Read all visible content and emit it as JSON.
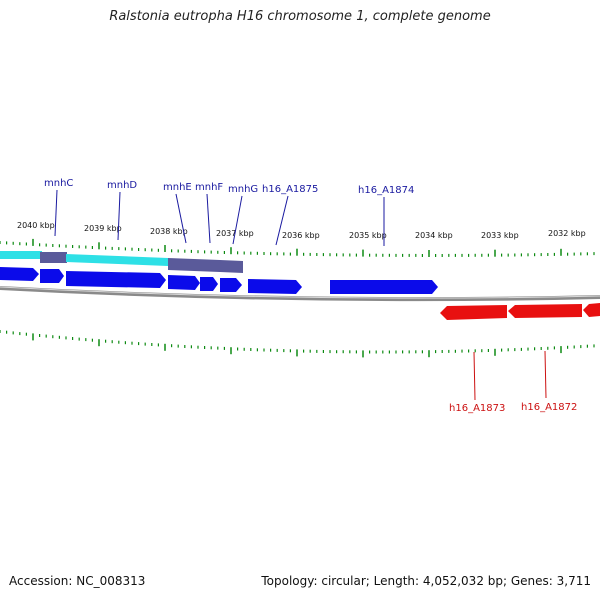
{
  "title": "Ralstonia eutropha H16 chromosome 1, complete genome",
  "footer": {
    "accession": "Accession: NC_008313",
    "summary": "Topology: circular; Length: 4,052,032 bp; Genes: 3,711"
  },
  "colors": {
    "forward_gene": "#0b0bea",
    "reverse_gene": "#e81010",
    "operon_cyan": "#2ee0e6",
    "operon_slate": "#5a5a9a",
    "backbone": "#8a8a8a",
    "tick": "#0d8a12",
    "top_label": "#1a1aa0",
    "bottom_label": "#cc1111"
  },
  "scale_labels": [
    {
      "text": "2040 kbp",
      "kbp": 2040
    },
    {
      "text": "2039 kbp",
      "kbp": 2039
    },
    {
      "text": "2038 kbp",
      "kbp": 2038
    },
    {
      "text": "2037 kbp",
      "kbp": 2037
    },
    {
      "text": "2036 kbp",
      "kbp": 2036
    },
    {
      "text": "2035 kbp",
      "kbp": 2035
    },
    {
      "text": "2034 kbp",
      "kbp": 2034
    },
    {
      "text": "2033 kbp",
      "kbp": 2033
    },
    {
      "text": "2032 kbp",
      "kbp": 2032
    }
  ],
  "forward_gene_labels": [
    {
      "text": "mnhC",
      "strand": "+"
    },
    {
      "text": "mnhD",
      "strand": "+"
    },
    {
      "text": "mnhE",
      "strand": "+"
    },
    {
      "text": "mnhF",
      "strand": "+"
    },
    {
      "text": "mnhG",
      "strand": "+"
    },
    {
      "text": "h16_A1875",
      "strand": "+"
    },
    {
      "text": "h16_A1874",
      "strand": "+"
    }
  ],
  "reverse_gene_labels": [
    {
      "text": "h16_A1873",
      "strand": "-"
    },
    {
      "text": "h16_A1872",
      "strand": "-"
    }
  ]
}
